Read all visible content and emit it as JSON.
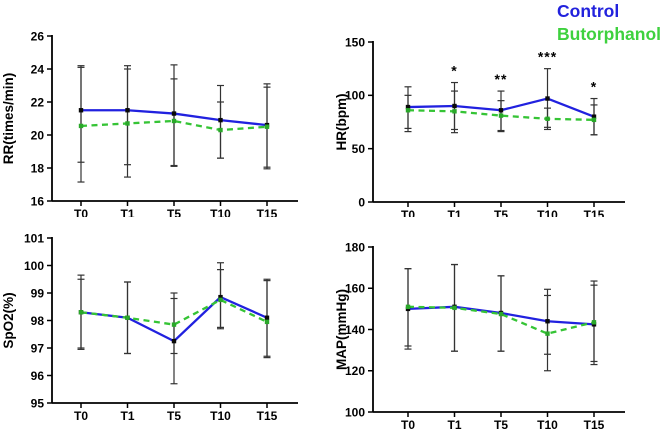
{
  "page": {
    "background": "#ffffff"
  },
  "legend": {
    "items": [
      {
        "label": "Control",
        "color": "#2222dd"
      },
      {
        "label": "Butorphanol",
        "color": "#3ed13e"
      }
    ]
  },
  "colors": {
    "control_line": "#2121df",
    "butorphanol_line": "#35c435",
    "control_marker": "#0a0a0a",
    "butorphanol_marker": "#2aa82a",
    "error_bar": "#333333",
    "axis": "#000000",
    "annotation": "#000000"
  },
  "chart_data": [
    {
      "id": "rr",
      "type": "line",
      "title": "",
      "xlabel": "",
      "ylabel": "RR(times/min)",
      "ylim": [
        16,
        26
      ],
      "yticks": [
        16,
        18,
        20,
        22,
        24,
        26
      ],
      "categories": [
        "T0",
        "T1",
        "T5",
        "T10",
        "T15"
      ],
      "grid": false,
      "series": [
        {
          "name": "Control",
          "values": [
            21.5,
            21.5,
            21.3,
            20.9,
            20.6
          ],
          "err_up": [
            24.2,
            24.2,
            24.25,
            23.0,
            23.1
          ],
          "err_down": [
            18.35,
            18.2,
            18.15,
            18.6,
            18.05
          ]
        },
        {
          "name": "Butorphanol",
          "values": [
            20.55,
            20.7,
            20.85,
            20.3,
            20.5
          ],
          "err_up": [
            24.1,
            24.0,
            23.4,
            22.0,
            22.9
          ],
          "err_down": [
            17.15,
            17.45,
            18.1,
            18.6,
            17.95
          ]
        }
      ],
      "annotations": [
        "",
        "",
        "",
        "",
        ""
      ]
    },
    {
      "id": "hr",
      "type": "line",
      "title": "",
      "xlabel": "",
      "ylabel": "HR(bpm)",
      "ylim": [
        0,
        150
      ],
      "yticks": [
        0,
        50,
        100,
        150
      ],
      "categories": [
        "T0",
        "T1",
        "T5",
        "T10",
        "T15"
      ],
      "grid": false,
      "series": [
        {
          "name": "Control",
          "values": [
            89,
            90,
            86,
            97,
            80
          ],
          "err_up": [
            108,
            112,
            104,
            125,
            97
          ],
          "err_down": [
            69,
            68,
            67,
            68,
            63
          ]
        },
        {
          "name": "Butorphanol",
          "values": [
            86,
            85,
            81,
            78,
            77
          ],
          "err_up": [
            100,
            104,
            95,
            88,
            91
          ],
          "err_down": [
            66,
            65,
            66,
            70,
            63
          ]
        }
      ],
      "annotations": [
        "",
        "*",
        "**",
        "***",
        "*"
      ]
    },
    {
      "id": "spo2",
      "type": "line",
      "title": "",
      "xlabel": "",
      "ylabel": "SpO2(%)",
      "ylim": [
        95,
        101
      ],
      "yticks": [
        95,
        96,
        97,
        98,
        99,
        100,
        101
      ],
      "categories": [
        "T0",
        "T1",
        "T5",
        "T10",
        "T15"
      ],
      "grid": false,
      "series": [
        {
          "name": "Control",
          "values": [
            98.3,
            98.1,
            97.25,
            98.85,
            98.1
          ],
          "err_up": [
            99.5,
            99.4,
            98.8,
            99.85,
            99.45
          ],
          "err_down": [
            97.0,
            96.8,
            95.7,
            97.75,
            96.7
          ]
        },
        {
          "name": "Butorphanol",
          "values": [
            98.3,
            98.1,
            97.85,
            98.75,
            97.95
          ],
          "err_up": [
            99.65,
            99.4,
            99.0,
            100.1,
            99.5
          ],
          "err_down": [
            96.95,
            96.8,
            96.8,
            97.7,
            96.65
          ]
        }
      ],
      "annotations": [
        "",
        "",
        "",
        "",
        ""
      ]
    },
    {
      "id": "map",
      "type": "line",
      "title": "",
      "xlabel": "",
      "ylabel": "MAP(mmHg)",
      "ylim": [
        100,
        180
      ],
      "yticks": [
        100,
        120,
        140,
        160,
        180
      ],
      "categories": [
        "T0",
        "T1",
        "T5",
        "T10",
        "T15"
      ],
      "grid": false,
      "series": [
        {
          "name": "Control",
          "values": [
            150,
            151,
            148,
            144,
            142.5
          ],
          "err_up": [
            169.5,
            171.5,
            166,
            159.5,
            161.5
          ],
          "err_down": [
            132,
            129.5,
            129.5,
            128,
            124.5
          ]
        },
        {
          "name": "Butorphanol",
          "values": [
            151,
            150.5,
            147.5,
            138,
            143.5
          ],
          "err_up": [
            169.5,
            171.5,
            166,
            156.5,
            163.5
          ],
          "err_down": [
            130.5,
            129.5,
            129.5,
            120,
            123
          ]
        }
      ],
      "annotations": [
        "",
        "",
        "",
        "",
        ""
      ]
    }
  ]
}
